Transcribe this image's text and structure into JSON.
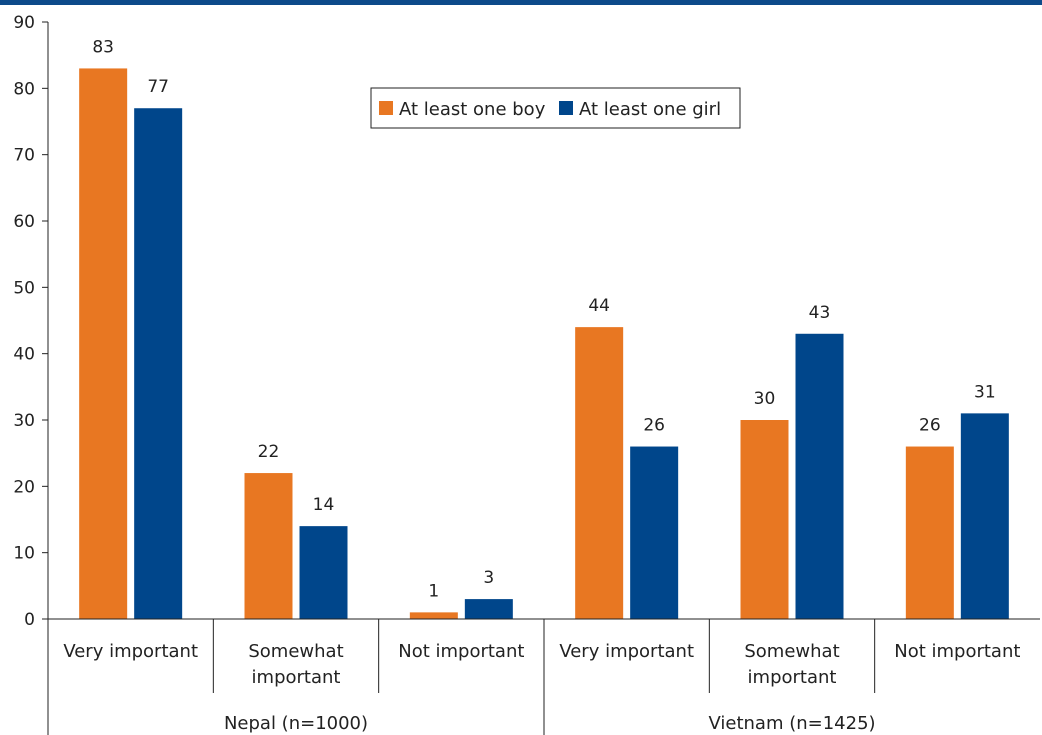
{
  "chart_data": {
    "type": "bar",
    "title": "",
    "xlabel": "",
    "ylabel": "",
    "ylim": [
      0,
      90
    ],
    "y_ticks": [
      0,
      10,
      20,
      30,
      40,
      50,
      60,
      70,
      80,
      90
    ],
    "grid": false,
    "legend_position": "top-center",
    "groups": [
      {
        "label": "Nepal (n=1000)",
        "categories": [
          "Very important",
          "Somewhat important",
          "Not important"
        ]
      },
      {
        "label": "Vietnam (n=1425)",
        "categories": [
          "Very important",
          "Somewhat important",
          "Not important"
        ]
      }
    ],
    "categories": [
      "Very important",
      "Somewhat important",
      "Not important",
      "Very important",
      "Somewhat important",
      "Not important"
    ],
    "series": [
      {
        "name": "At least one boy",
        "color": "#e87722",
        "values": [
          83,
          22,
          1,
          44,
          30,
          26
        ]
      },
      {
        "name": "At least one girl",
        "color": "#00468b",
        "values": [
          77,
          14,
          3,
          26,
          43,
          31
        ]
      }
    ]
  }
}
